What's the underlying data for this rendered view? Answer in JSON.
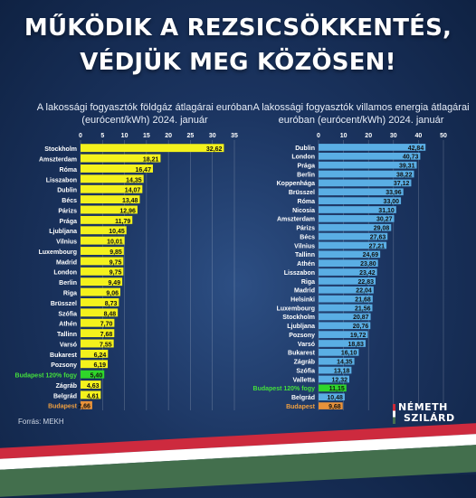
{
  "headline": [
    "MŰKÖDIK A REZSICSÖKKENTÉS,",
    "VÉDJÜK MEG KÖZÖSEN!"
  ],
  "source": "Forrás: MEKH",
  "logo": {
    "line1": "NÉMETH",
    "line2": "SZILÁRD"
  },
  "colors": {
    "gas_bar": "#f4f21c",
    "electric_bar": "#5aaee4",
    "budapest_120": "#2fd62a",
    "budapest": "#e8923a",
    "highlight_label_green": "#44e03c",
    "highlight_label_orange": "#f0a040"
  },
  "chart_data": [
    {
      "type": "bar",
      "orientation": "horizontal",
      "title": "A lakossági fogyasztók földgáz átlagárai euróban (eurócent/kWh) 2024. január",
      "xlim": [
        0,
        35
      ],
      "ticks": [
        0,
        5,
        10,
        15,
        20,
        25,
        30,
        35
      ],
      "grid": true,
      "categories": [
        "Stockholm",
        "Amszterdam",
        "Róma",
        "Lisszabon",
        "Dublin",
        "Bécs",
        "Párizs",
        "Prága",
        "Ljubljana",
        "Vilnius",
        "Luxembourg",
        "Madrid",
        "London",
        "Berlin",
        "Riga",
        "Brüsszel",
        "Szófia",
        "Athén",
        "Tallinn",
        "Varsó",
        "Bukarest",
        "Pozsony",
        "Budapest 120% fogy",
        "Zágráb",
        "Belgrád",
        "Budapest"
      ],
      "values": [
        32.62,
        18.21,
        16.47,
        14.35,
        14.07,
        13.48,
        12.96,
        11.79,
        10.45,
        10.01,
        9.85,
        9.75,
        9.75,
        9.49,
        9.06,
        8.73,
        8.48,
        7.7,
        7.68,
        7.55,
        6.24,
        6.19,
        5.4,
        4.63,
        4.61,
        2.66
      ],
      "value_labels": [
        "32,62",
        "18,21",
        "16,47",
        "14,35",
        "14,07",
        "13,48",
        "12,96",
        "11,79",
        "10,45",
        "10,01",
        "9,85",
        "9,75",
        "9,75",
        "9,49",
        "9,06",
        "8,73",
        "8,48",
        "7,70",
        "7,68",
        "7,55",
        "6,24",
        "6,19",
        "5,40",
        "4,63",
        "4,61",
        "2,66"
      ],
      "highlight": {
        "Budapest 120% fogy": "green",
        "Budapest": "orange"
      }
    },
    {
      "type": "bar",
      "orientation": "horizontal",
      "title": "A lakossági fogyasztók villamos energia átlagárai euróban (eurócent/kWh) 2024. január",
      "xlim": [
        0,
        50
      ],
      "ticks": [
        0,
        10,
        20,
        30,
        40,
        50
      ],
      "grid": true,
      "categories": [
        "Dublin",
        "London",
        "Prága",
        "Berlin",
        "Koppenhága",
        "Brüsszel",
        "Róma",
        "Nicosia",
        "Amszterdam",
        "Párizs",
        "Bécs",
        "Vilnius",
        "Tallinn",
        "Athén",
        "Lisszabon",
        "Riga",
        "Madrid",
        "Helsinki",
        "Luxembourg",
        "Stockholm",
        "Ljubljana",
        "Pozsony",
        "Varsó",
        "Bukarest",
        "Zágráb",
        "Szófia",
        "Valletta",
        "Budapest 120% fogy",
        "Belgrád",
        "Budapest"
      ],
      "values": [
        42.84,
        40.73,
        39.31,
        38.22,
        37.12,
        33.96,
        33.0,
        31.1,
        30.27,
        29.08,
        27.63,
        27.21,
        24.69,
        23.8,
        23.42,
        22.83,
        22.04,
        21.68,
        21.56,
        20.87,
        20.76,
        19.72,
        18.83,
        16.1,
        14.35,
        13.18,
        12.32,
        11.15,
        10.48,
        9.68
      ],
      "value_labels": [
        "42,84",
        "40,73",
        "39,31",
        "38,22",
        "37,12",
        "33,96",
        "33,00",
        "31,10",
        "30,27",
        "29,08",
        "27,63",
        "27,21",
        "24,69",
        "23,80",
        "23,42",
        "22,83",
        "22,04",
        "21,68",
        "21,56",
        "20,87",
        "20,76",
        "19,72",
        "18,83",
        "16,10",
        "14,35",
        "13,18",
        "12,32",
        "11,15",
        "10,48",
        "9,68"
      ],
      "highlight": {
        "Budapest 120% fogy": "green",
        "Budapest": "orange"
      }
    }
  ]
}
